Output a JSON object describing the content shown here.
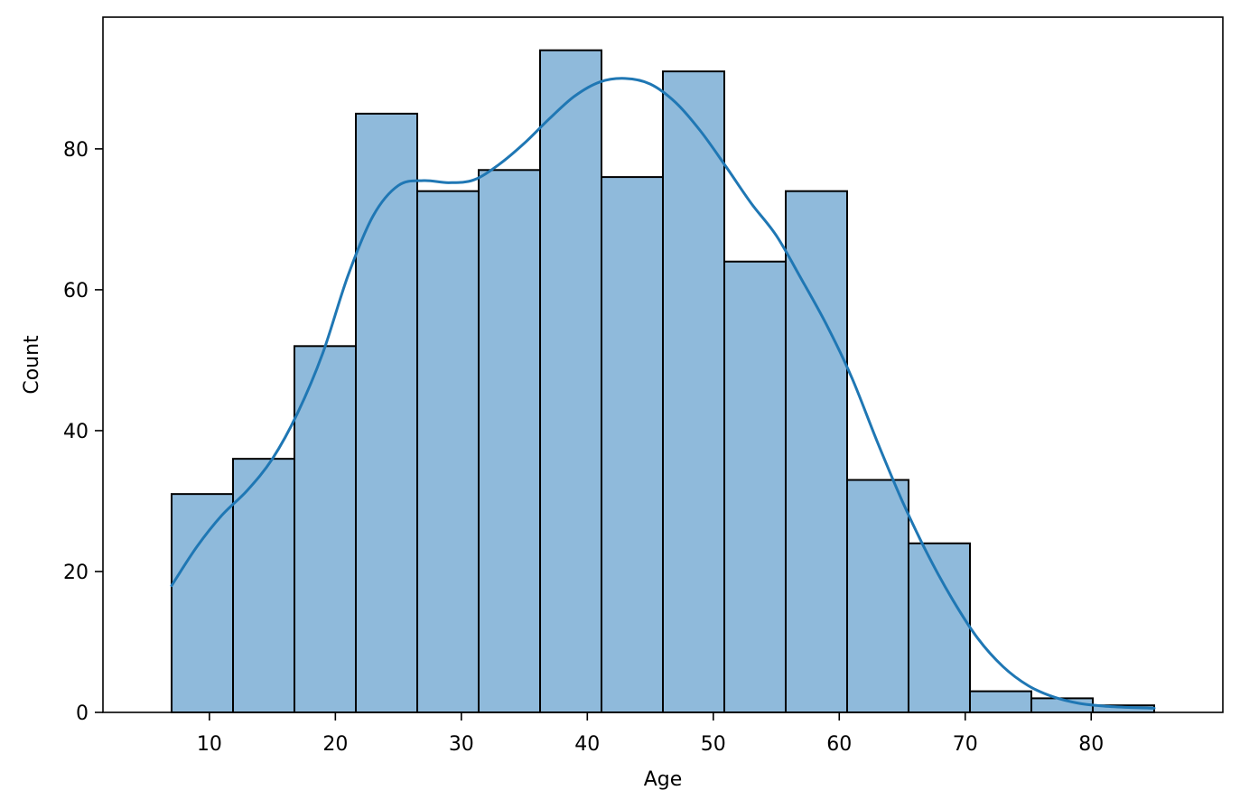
{
  "chart_data": {
    "type": "bar",
    "subtype": "histogram-with-kde",
    "xlabel": "Age",
    "ylabel": "Count",
    "xlim": [
      1.55,
      90.45
    ],
    "ylim": [
      0,
      98.7
    ],
    "grid": false,
    "xticks": [
      10,
      20,
      30,
      40,
      50,
      60,
      70,
      80
    ],
    "yticks": [
      0,
      20,
      40,
      60,
      80
    ],
    "bins": [
      {
        "x0": 7.0,
        "x1": 11.875,
        "count": 31
      },
      {
        "x0": 11.875,
        "x1": 16.75,
        "count": 36
      },
      {
        "x0": 16.75,
        "x1": 21.625,
        "count": 52
      },
      {
        "x0": 21.625,
        "x1": 26.5,
        "count": 85
      },
      {
        "x0": 26.5,
        "x1": 31.375,
        "count": 74
      },
      {
        "x0": 31.375,
        "x1": 36.25,
        "count": 77
      },
      {
        "x0": 36.25,
        "x1": 41.125,
        "count": 94
      },
      {
        "x0": 41.125,
        "x1": 46.0,
        "count": 76
      },
      {
        "x0": 46.0,
        "x1": 50.875,
        "count": 91
      },
      {
        "x0": 50.875,
        "x1": 55.75,
        "count": 64
      },
      {
        "x0": 55.75,
        "x1": 60.625,
        "count": 74
      },
      {
        "x0": 60.625,
        "x1": 65.5,
        "count": 33
      },
      {
        "x0": 65.5,
        "x1": 70.375,
        "count": 24
      },
      {
        "x0": 70.375,
        "x1": 75.25,
        "count": 3
      },
      {
        "x0": 75.25,
        "x1": 80.125,
        "count": 2
      },
      {
        "x0": 80.125,
        "x1": 85.0,
        "count": 1
      }
    ],
    "kde": {
      "x": [
        7,
        9,
        11,
        13,
        15,
        17,
        19,
        21,
        23,
        25,
        27,
        29,
        31,
        33,
        35,
        37,
        39,
        41,
        43,
        45,
        47,
        49,
        51,
        53,
        55,
        57,
        59,
        61,
        63,
        65,
        67,
        69,
        71,
        73,
        75,
        77,
        79,
        81,
        83,
        85
      ],
      "y": [
        18,
        23.5,
        28,
        31.5,
        36,
        42.5,
        51,
        62,
        70.5,
        74.8,
        75.5,
        75.2,
        75.6,
        77.8,
        80.8,
        84.3,
        87.5,
        89.5,
        90,
        89.2,
        86.6,
        82.5,
        77.5,
        72.3,
        67.7,
        61.5,
        55,
        47.5,
        38.5,
        30,
        22.5,
        16,
        10.5,
        6.5,
        3.8,
        2.2,
        1.3,
        0.9,
        0.7,
        0.6
      ]
    },
    "colors": {
      "bar_fill": "#8fbadb",
      "bar_edge": "#000000",
      "kde_line": "#1f77b4"
    }
  }
}
